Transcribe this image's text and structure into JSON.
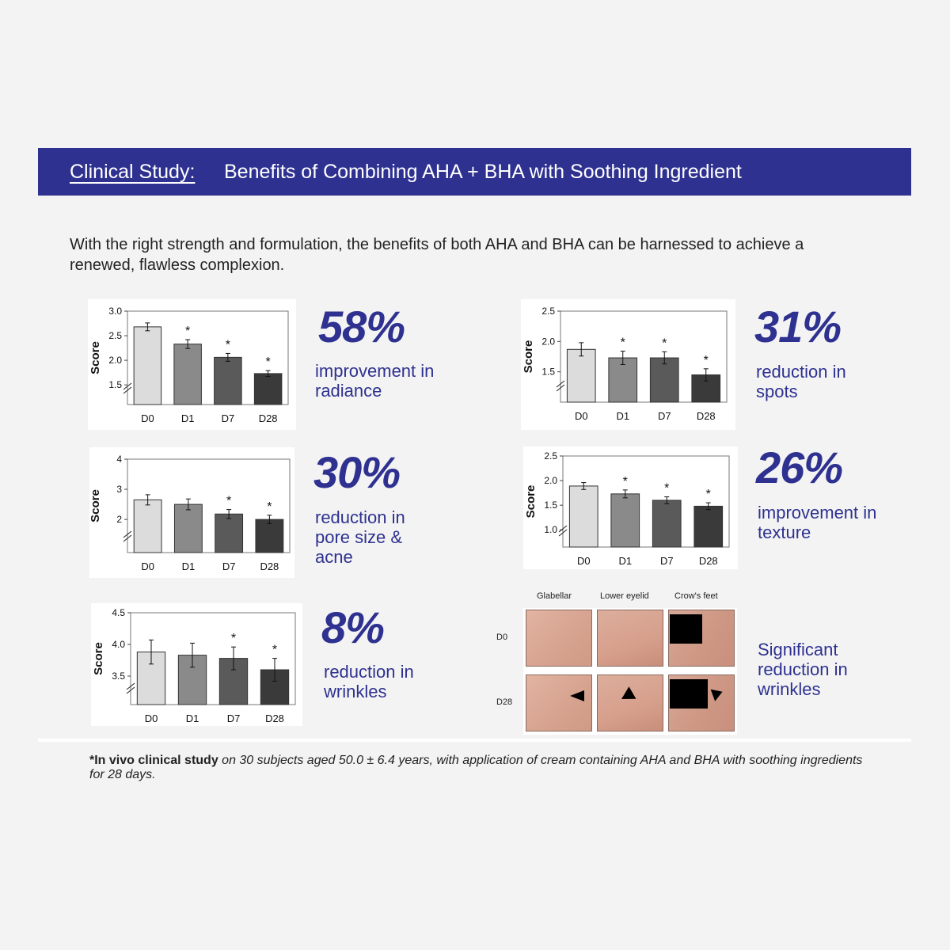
{
  "header": {
    "label": "Clinical Study:",
    "title": "Benefits of Combining AHA + BHA with Soothing Ingredient",
    "color": "#2e3190"
  },
  "intro": "With the right strength and formulation, the benefits of both AHA and BHA can be harnessed to achieve a renewed, flawless complexion.",
  "stats": [
    {
      "value": "58%",
      "desc": "improvement in radiance"
    },
    {
      "value": "31%",
      "desc": "reduction in spots"
    },
    {
      "value": "30%",
      "desc": "reduction in pore size & acne"
    },
    {
      "value": "26%",
      "desc": "improvement in texture"
    },
    {
      "value": "8%",
      "desc": "reduction in wrinkles"
    },
    {
      "value": "",
      "desc": "Significant reduction in wrinkles"
    }
  ],
  "chart_data": [
    {
      "type": "bar",
      "ylabel": "Score",
      "categories": [
        "D0",
        "D1",
        "D7",
        "D28"
      ],
      "values": [
        2.68,
        2.33,
        2.06,
        1.73
      ],
      "errors": [
        0.08,
        0.09,
        0.08,
        0.06
      ],
      "significant": [
        false,
        true,
        true,
        true
      ],
      "ylim": [
        1.1,
        3.0
      ],
      "ticks": [
        "1.5",
        "2.0",
        "2.5",
        "3.0"
      ],
      "tick_values": [
        1.5,
        2.0,
        2.5,
        3.0
      ],
      "axis_break": true,
      "grid": false
    },
    {
      "type": "bar",
      "ylabel": "Score",
      "categories": [
        "D0",
        "D1",
        "D7",
        "D28"
      ],
      "values": [
        1.87,
        1.73,
        1.73,
        1.45
      ],
      "errors": [
        0.11,
        0.11,
        0.1,
        0.1
      ],
      "significant": [
        false,
        true,
        true,
        true
      ],
      "ylim": [
        1.0,
        2.5
      ],
      "ticks": [
        "1.5",
        "2.0",
        "2.5"
      ],
      "tick_values": [
        1.5,
        2.0,
        2.5
      ],
      "axis_break": true,
      "grid": false
    },
    {
      "type": "bar",
      "ylabel": "Score",
      "categories": [
        "D0",
        "D1",
        "D7",
        "D28"
      ],
      "values": [
        2.65,
        2.5,
        2.18,
        2.0
      ],
      "errors": [
        0.17,
        0.18,
        0.15,
        0.14
      ],
      "significant": [
        false,
        false,
        true,
        true
      ],
      "ylim": [
        0.9,
        4.0
      ],
      "ticks": [
        "2",
        "3",
        "4"
      ],
      "tick_values": [
        2,
        3,
        4
      ],
      "axis_break": true,
      "grid": false
    },
    {
      "type": "bar",
      "ylabel": "Score",
      "categories": [
        "D0",
        "D1",
        "D7",
        "D28"
      ],
      "values": [
        1.89,
        1.73,
        1.6,
        1.48
      ],
      "errors": [
        0.07,
        0.08,
        0.07,
        0.07
      ],
      "significant": [
        false,
        true,
        true,
        true
      ],
      "ylim": [
        0.65,
        2.5
      ],
      "ticks": [
        "1.0",
        "1.5",
        "2.0",
        "2.5"
      ],
      "tick_values": [
        1.0,
        1.5,
        2.0,
        2.5
      ],
      "axis_break": true,
      "grid": false
    },
    {
      "type": "bar",
      "ylabel": "Score",
      "categories": [
        "D0",
        "D1",
        "D7",
        "D28"
      ],
      "values": [
        3.88,
        3.83,
        3.78,
        3.6
      ],
      "errors": [
        0.19,
        0.19,
        0.18,
        0.18
      ],
      "significant": [
        false,
        false,
        true,
        true
      ],
      "ylim": [
        3.05,
        4.5
      ],
      "ticks": [
        "3.5",
        "4.0",
        "4.5"
      ],
      "tick_values": [
        3.5,
        4.0,
        4.5
      ],
      "axis_break": true,
      "grid": false
    }
  ],
  "bar_colors": [
    "#dcdcdc",
    "#8a8a8a",
    "#5a5a5a",
    "#3a3a3a"
  ],
  "significance_marker": "*",
  "photos": {
    "columns": [
      "Glabellar",
      "Lower eyelid",
      "Crow's feet"
    ],
    "rows": [
      "D0",
      "D28"
    ]
  },
  "footnote": {
    "lead": "*In vivo clinical study",
    "rest": " on 30 subjects aged 50.0 ± 6.4 years, with application of cream containing AHA and BHA with soothing ingredients for 28 days."
  }
}
